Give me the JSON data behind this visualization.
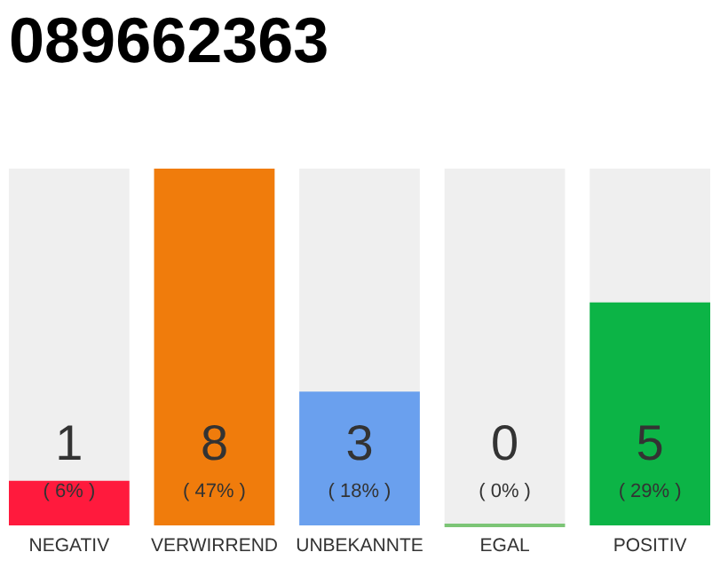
{
  "chart_data": {
    "type": "bar",
    "title": "089662363",
    "categories": [
      "NEGATIV",
      "VERWIRREND",
      "UNBEKANNTE",
      "EGAL",
      "POSITIV"
    ],
    "values": [
      1,
      8,
      3,
      0,
      5
    ],
    "colors": [
      "#ff1a3d",
      "#f07c0c",
      "#6aa0ee",
      "#7cc576",
      "#0cb446"
    ],
    "ylim": [
      0,
      8
    ],
    "data_labels": true,
    "tick_labels": "x",
    "annotations": [
      "( 6% )",
      "( 47% )",
      "( 18% )",
      "( 0% )",
      "( 29% )"
    ]
  }
}
